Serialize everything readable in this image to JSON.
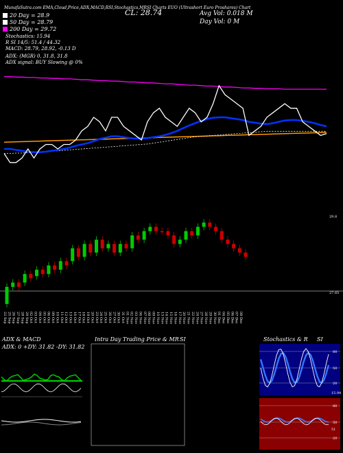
{
  "header": {
    "top_line": "MunafaSutra.com EMA,Cloud,Price,ADX,MACD,RSI,Stochastics,MRSI Charts EUO (Ultrashort Euro Proshares) Chart",
    "legend": [
      {
        "label": "20  Day = 28.9",
        "color": "#ffffff"
      },
      {
        "label": "50  Day = 28.79",
        "color": "#ffffff"
      },
      {
        "label": "200  Day = 29.72",
        "color": "#ff00ff"
      }
    ],
    "cl": "CL: 28.74",
    "avg_vol": "Avg Vol: 0.018  M",
    "day_vol": "Day Vol: 0   M",
    "stochastics": "Stochastics: 15.94",
    "r_line": "R                 SI 14/5: 51.4 / 44.32",
    "macd": "MACD: 28.79, 28.92, -0.13 D",
    "adx": "ADX:                         (MGR) 0, 31.8, 31.8",
    "adx_signal": "ADX  signal:                              BUY Slowing @ 0%"
  },
  "chart_data": [
    {
      "type": "line",
      "name": "price-ema-panel",
      "x": [
        "22 Sep",
        "25 Sep",
        "26 Sep",
        "27 Sep",
        "28 Sep",
        "29 Sep",
        "02 Oct",
        "03 Oct",
        "04 Oct",
        "05 Oct",
        "06 Oct",
        "09 Oct",
        "10 Oct",
        "11 Oct",
        "12 Oct",
        "13 Oct",
        "16 Oct",
        "17 Oct",
        "18 Oct",
        "19 Oct",
        "20 Oct",
        "23 Oct",
        "24 Oct",
        "25 Oct",
        "26 Oct",
        "27 Oct",
        "30 Oct",
        "31 Oct",
        "01 Nov",
        "02 Nov",
        "03 Nov",
        "06 Nov",
        "07 Nov",
        "08 Nov",
        "09 Nov",
        "10 Nov",
        "13 Nov",
        "14 Nov",
        "15 Nov",
        "16 Nov",
        "17 Nov",
        "20 Nov",
        "21 Nov",
        "22 Nov",
        "24 Nov",
        "27 Nov",
        "28 Nov",
        "29 Nov",
        "30 Nov",
        "01 Dec",
        "04 Dec",
        "05 Dec",
        "06 Dec",
        "07 Dec",
        "08 Dec"
      ],
      "series": [
        {
          "name": "200 Day",
          "color": "#ff00ff",
          "values": [
            30.0,
            30.0,
            29.99,
            29.99,
            29.98,
            29.98,
            29.97,
            29.97,
            29.96,
            29.96,
            29.95,
            29.95,
            29.94,
            29.93,
            29.93,
            29.92,
            29.91,
            29.91,
            29.9,
            29.9,
            29.89,
            29.88,
            29.88,
            29.87,
            29.86,
            29.86,
            29.85,
            29.84,
            29.84,
            29.83,
            29.82,
            29.81,
            29.81,
            29.8,
            29.79,
            29.79,
            29.78,
            29.77,
            29.77,
            29.76,
            29.75,
            29.75,
            29.74,
            29.74,
            29.73,
            29.73,
            29.73,
            29.72,
            29.72,
            29.72,
            29.72,
            29.72,
            29.72,
            29.72,
            29.72
          ]
        },
        {
          "name": "50 Day",
          "color": "#ffffff",
          "values": [
            28.3,
            28.3,
            28.31,
            28.31,
            28.32,
            28.32,
            28.33,
            28.34,
            28.35,
            28.36,
            28.37,
            28.38,
            28.39,
            28.4,
            28.41,
            28.42,
            28.43,
            28.44,
            28.45,
            28.46,
            28.47,
            28.48,
            28.49,
            28.5,
            28.51,
            28.53,
            28.55,
            28.57,
            28.59,
            28.61,
            28.63,
            28.65,
            28.67,
            28.68,
            28.69,
            28.7,
            28.71,
            28.72,
            28.73,
            28.74,
            28.75,
            28.76,
            28.77,
            28.78,
            28.79,
            28.79,
            28.79,
            28.79,
            28.79,
            28.79,
            28.79,
            28.79,
            28.79,
            28.79,
            28.79
          ]
        },
        {
          "name": "20 Day",
          "color": "#ffffff",
          "values": [
            28.4,
            28.4,
            28.38,
            28.36,
            28.34,
            28.33,
            28.33,
            28.34,
            28.36,
            28.38,
            28.4,
            28.43,
            28.47,
            28.5,
            28.53,
            28.57,
            28.62,
            28.65,
            28.68,
            28.68,
            28.66,
            28.64,
            28.63,
            28.63,
            28.64,
            28.66,
            28.68,
            28.71,
            28.75,
            28.8,
            28.86,
            28.92,
            28.97,
            29.02,
            29.06,
            29.09,
            29.1,
            29.1,
            29.08,
            29.06,
            29.04,
            29.0,
            28.98,
            28.96,
            28.95,
            28.97,
            29.0,
            29.03,
            29.04,
            29.04,
            29.02,
            29.0,
            28.97,
            28.93,
            28.9
          ]
        },
        {
          "name": "Price",
          "color": "#ffffff",
          "values": [
            28.3,
            28.1,
            28.1,
            28.2,
            28.4,
            28.2,
            28.4,
            28.5,
            28.5,
            28.4,
            28.5,
            28.5,
            28.6,
            28.8,
            28.9,
            29.1,
            29.0,
            28.8,
            29.1,
            29.1,
            28.9,
            28.8,
            28.7,
            28.6,
            29.0,
            29.2,
            29.3,
            29.1,
            29.0,
            28.9,
            29.1,
            29.3,
            29.2,
            29.0,
            29.1,
            29.4,
            29.8,
            29.6,
            29.5,
            29.4,
            29.3,
            28.7,
            28.8,
            28.9,
            29.1,
            29.2,
            29.3,
            29.4,
            29.3,
            29.3,
            29.0,
            28.9,
            28.8,
            28.7,
            28.74
          ]
        }
      ]
    },
    {
      "type": "candlestick",
      "name": "candles-panel",
      "y_labels": {
        "high": "29.8",
        "low": "27.65"
      },
      "values": [
        {
          "o": 27.6,
          "c": 28.0,
          "up": true
        },
        {
          "o": 28.0,
          "c": 28.1,
          "up": true
        },
        {
          "o": 28.1,
          "c": 28.0,
          "up": false
        },
        {
          "o": 28.1,
          "c": 28.3,
          "up": true
        },
        {
          "o": 28.3,
          "c": 28.2,
          "up": false
        },
        {
          "o": 28.25,
          "c": 28.4,
          "up": true
        },
        {
          "o": 28.4,
          "c": 28.3,
          "up": false
        },
        {
          "o": 28.3,
          "c": 28.5,
          "up": true
        },
        {
          "o": 28.5,
          "c": 28.4,
          "up": false
        },
        {
          "o": 28.4,
          "c": 28.6,
          "up": true
        },
        {
          "o": 28.6,
          "c": 28.5,
          "up": false
        },
        {
          "o": 28.6,
          "c": 28.9,
          "up": true
        },
        {
          "o": 28.9,
          "c": 28.7,
          "up": false
        },
        {
          "o": 28.7,
          "c": 29.0,
          "up": true
        },
        {
          "o": 29.0,
          "c": 28.8,
          "up": false
        },
        {
          "o": 28.8,
          "c": 29.1,
          "up": true
        },
        {
          "o": 29.1,
          "c": 28.9,
          "up": false
        },
        {
          "o": 28.9,
          "c": 29.0,
          "up": true
        },
        {
          "o": 29.0,
          "c": 28.8,
          "up": false
        },
        {
          "o": 28.8,
          "c": 29.0,
          "up": true
        },
        {
          "o": 29.0,
          "c": 28.9,
          "up": false
        },
        {
          "o": 28.9,
          "c": 29.2,
          "up": true
        },
        {
          "o": 29.2,
          "c": 29.1,
          "up": false
        },
        {
          "o": 29.1,
          "c": 29.3,
          "up": true
        },
        {
          "o": 29.3,
          "c": 29.4,
          "up": true
        },
        {
          "o": 29.4,
          "c": 29.3,
          "up": false
        },
        {
          "o": 29.3,
          "c": 29.3,
          "up": false
        },
        {
          "o": 29.3,
          "c": 29.2,
          "up": false
        },
        {
          "o": 29.2,
          "c": 29.0,
          "up": false
        },
        {
          "o": 29.0,
          "c": 29.1,
          "up": true
        },
        {
          "o": 29.1,
          "c": 29.3,
          "up": true
        },
        {
          "o": 29.3,
          "c": 29.2,
          "up": false
        },
        {
          "o": 29.2,
          "c": 29.4,
          "up": true
        },
        {
          "o": 29.4,
          "c": 29.5,
          "up": true
        },
        {
          "o": 29.5,
          "c": 29.4,
          "up": false
        },
        {
          "o": 29.4,
          "c": 29.3,
          "up": false
        },
        {
          "o": 29.3,
          "c": 29.1,
          "up": false
        },
        {
          "o": 29.1,
          "c": 29.0,
          "up": false
        },
        {
          "o": 29.0,
          "c": 28.9,
          "up": false
        },
        {
          "o": 28.9,
          "c": 28.8,
          "up": false
        },
        {
          "o": 28.8,
          "c": 28.7,
          "up": false
        }
      ]
    }
  ],
  "panels": {
    "adx_macd_title": "ADX  & MACD",
    "adx_values": "ADX: 0  +DY: 31.82  -DY: 31.82",
    "intraday_title": "Intra Day Trading Price  & MR",
    "intraday_si": "SI",
    "stoch_title": "Stochastics & R",
    "stoch_si": "SI",
    "stoch_ticks": [
      "80",
      "50",
      "20"
    ],
    "stoch_last": "15.94",
    "rsi_ticks": [
      "80",
      "50",
      "20"
    ],
    "rsi_last": "51"
  },
  "colors": {
    "ema200": "#ff00ff",
    "blue": "#0033ff",
    "orange": "#ff9900",
    "green": "#00cc00",
    "red": "#cc0000",
    "stoch_bg": "#000080",
    "rsi_bg": "#8b0000"
  }
}
